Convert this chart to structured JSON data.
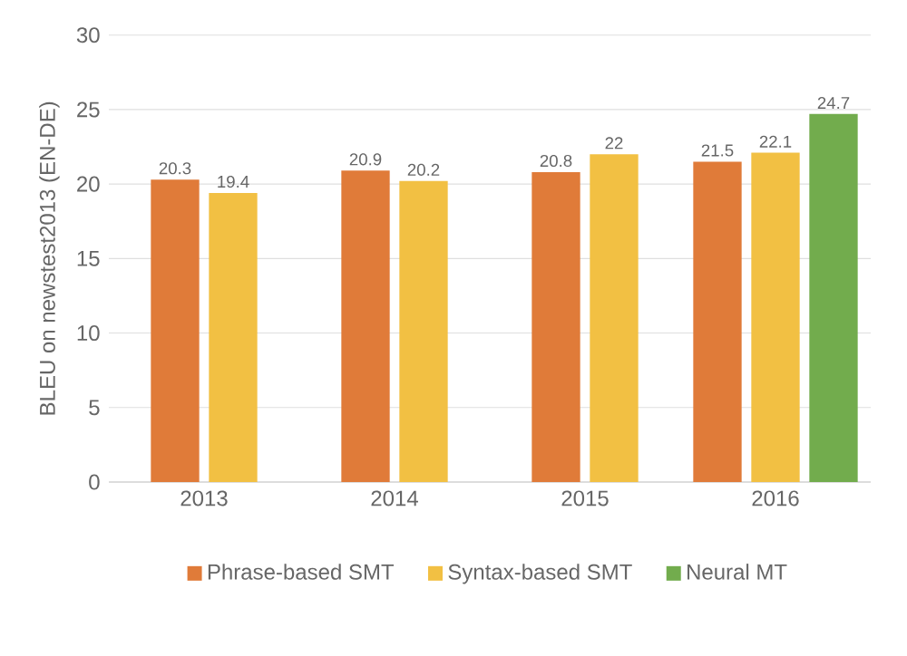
{
  "chart_data": {
    "type": "bar",
    "ylabel": "BLEU on newstest2013 (EN-DE)",
    "categories": [
      "2013",
      "2014",
      "2015",
      "2016"
    ],
    "series": [
      {
        "name": "Phrase-based SMT",
        "color": "#e07b39",
        "values": [
          20.3,
          20.9,
          20.8,
          21.5
        ]
      },
      {
        "name": "Syntax-based SMT",
        "color": "#f2c043",
        "values": [
          19.4,
          20.2,
          22,
          22.1
        ]
      },
      {
        "name": "Neural MT",
        "color": "#72ac4d",
        "values": [
          null,
          null,
          null,
          24.7
        ]
      }
    ],
    "ylim": [
      0,
      30
    ],
    "yticks": [
      0,
      5,
      10,
      15,
      20,
      25,
      30
    ],
    "grid": "y",
    "legend": "bottom",
    "data_labels": true
  }
}
